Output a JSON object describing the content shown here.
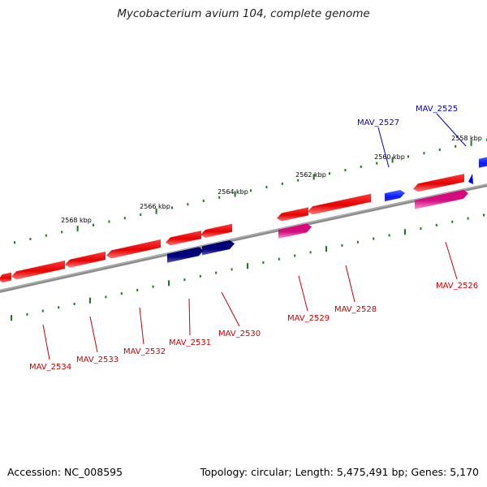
{
  "title": "Mycobacterium avium 104, complete genome",
  "footer": {
    "accession": "Accession: NC_008595",
    "summary": "Topology: circular; Length: 5,475,491 bp; Genes: 5,170"
  },
  "colors": {
    "backbone": "#8c8c8c",
    "tick": "#1a7a1a",
    "forward_gene": "#0000ff",
    "reverse_gene": "#ee0000",
    "reverse_gene_pink": "#ee1199",
    "reverse_gene_navy": "#00007a",
    "forward_label": "#0000cc",
    "reverse_label": "#cc0000"
  },
  "scale": {
    "unit": "kbp",
    "tick_labels": [
      {
        "kbp": 2558,
        "text": "2558 kbp"
      },
      {
        "kbp": 2560,
        "text": "2560 kbp"
      },
      {
        "kbp": 2562,
        "text": "2562 kbp"
      },
      {
        "kbp": 2564,
        "text": "2564 kbp"
      },
      {
        "kbp": 2566,
        "text": "2566 kbp"
      },
      {
        "kbp": 2568,
        "text": "2568 kbp"
      }
    ]
  },
  "genes": [
    {
      "locus": "MAV_2525",
      "strand": "forward",
      "color": "blue"
    },
    {
      "locus": "MAV_2527",
      "strand": "forward",
      "color": "blue"
    },
    {
      "locus": "MAV_2526",
      "strand": "reverse",
      "color": "red"
    },
    {
      "locus": "MAV_2528",
      "strand": "reverse",
      "color": "red"
    },
    {
      "locus": "MAV_2529",
      "strand": "reverse",
      "color": "pink"
    },
    {
      "locus": "MAV_2530",
      "strand": "reverse",
      "color": "navy"
    },
    {
      "locus": "MAV_2531",
      "strand": "reverse",
      "color": "navy"
    },
    {
      "locus": "MAV_2532",
      "strand": "reverse",
      "color": "red"
    },
    {
      "locus": "MAV_2533",
      "strand": "reverse",
      "color": "red"
    },
    {
      "locus": "MAV_2534",
      "strand": "reverse",
      "color": "red"
    }
  ]
}
